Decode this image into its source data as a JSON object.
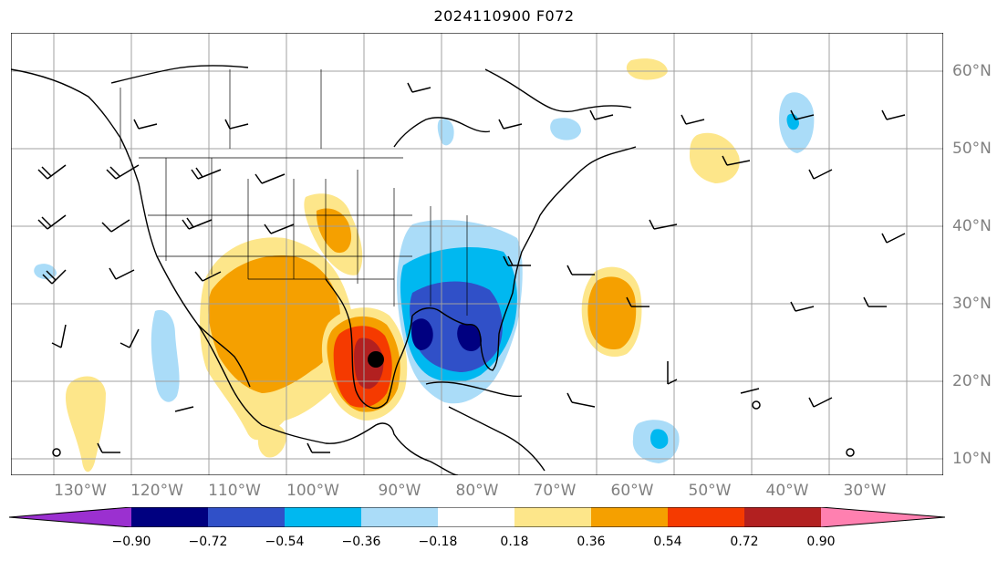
{
  "title": "2024110900 F072",
  "lon_labels": [
    "130°W",
    "120°W",
    "110°W",
    "100°W",
    "90°W",
    "80°W",
    "70°W",
    "60°W",
    "50°W",
    "40°W",
    "30°W"
  ],
  "lat_labels": [
    "60°N",
    "50°N",
    "40°N",
    "30°N",
    "20°N",
    "10°N"
  ],
  "colorbar": {
    "ticks": [
      "−0.90",
      "−0.72",
      "−0.54",
      "−0.36",
      "−0.18",
      "0.18",
      "0.36",
      "0.54",
      "0.72",
      "0.90"
    ],
    "colors": [
      "#9b30d0",
      "#000080",
      "#3050c8",
      "#00b8f0",
      "#aadcf8",
      "#ffffff",
      "#fde68a",
      "#f5a000",
      "#f53a00",
      "#b22020",
      "#ff80b0"
    ]
  },
  "colors": {
    "light_blue": "#aadcf8",
    "cyan": "#00b8f0",
    "blue": "#3050c8",
    "navy": "#000080",
    "yellow": "#fde68a",
    "orange": "#f5a000",
    "red_orange": "#f53a00",
    "dark_red": "#b22020",
    "grid": "#a0a0a0"
  }
}
